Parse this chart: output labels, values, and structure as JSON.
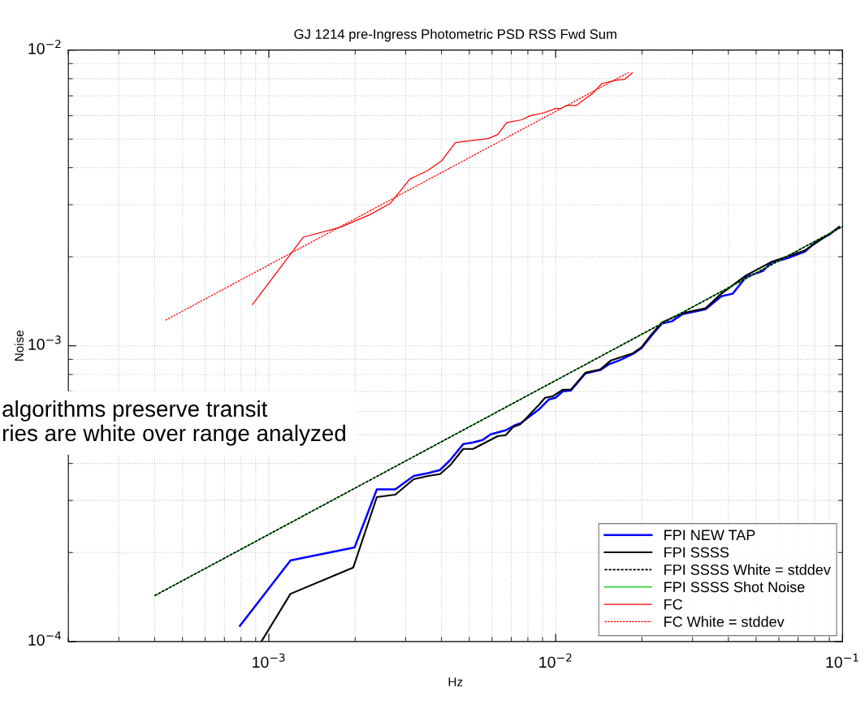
{
  "chart_data": {
    "type": "line",
    "title": "GJ 1214 pre-Ingress Photometric PSD RSS Fwd Sum",
    "xlabel": "Hz",
    "ylabel": "Noise",
    "log": "xy",
    "grid": true,
    "legend": "bottom right",
    "xlim": [
      0.0002,
      0.1
    ],
    "ylim": [
      0.0001,
      0.01
    ],
    "xticks": [
      {
        "value": 0.001,
        "label": "10$^{−3}$"
      },
      {
        "value": 0.01,
        "label": "10$^{−2}$"
      },
      {
        "value": 0.1,
        "label": "10$^{−1}$"
      }
    ],
    "yticks": [
      {
        "value": 0.0001,
        "label": "10$^{−4}$"
      },
      {
        "value": 0.001,
        "label": "10$^{−3}$"
      },
      {
        "value": 0.01,
        "label": "10$^{−2}$"
      }
    ],
    "annotations": [
      "algorithms preserve transit\nries are white over range analyzed"
    ],
    "series": [
      {
        "name": "FPI NEW TAP",
        "color": "#0000ff",
        "line_style": "solid",
        "x": [
          0.000793,
          0.00119,
          0.00199,
          0.00238,
          0.00276,
          0.0032,
          0.00359,
          0.00395,
          0.00428,
          0.00476,
          0.00515,
          0.00556,
          0.00593,
          0.0067,
          0.00719,
          0.00757,
          0.00877,
          0.00948,
          0.00998,
          0.0106,
          0.0113,
          0.0127,
          0.0143,
          0.0153,
          0.0167,
          0.0186,
          0.0199,
          0.0217,
          0.0235,
          0.0254,
          0.0277,
          0.0333,
          0.0378,
          0.0414,
          0.0461,
          0.0528,
          0.0564,
          0.0644,
          0.0738,
          0.0813,
          0.0902,
          0.0973
        ],
        "values": [
          0.000113,
          0.000188,
          0.000208,
          0.000327,
          0.000327,
          0.000363,
          0.000371,
          0.00038,
          0.00041,
          0.000465,
          0.000471,
          0.00048,
          0.000502,
          0.000518,
          0.000538,
          0.000548,
          0.000611,
          0.000659,
          0.000667,
          0.000702,
          0.000706,
          0.000807,
          0.000828,
          0.000865,
          0.000893,
          0.000939,
          0.000982,
          0.00109,
          0.00119,
          0.00121,
          0.00128,
          0.00133,
          0.00147,
          0.0015,
          0.00171,
          0.00179,
          0.00191,
          0.00198,
          0.00208,
          0.00226,
          0.00238,
          0.00252
        ]
      },
      {
        "name": "FPI SSSS",
        "color": "#000000",
        "line_style": "solid",
        "x": [
          0.000942,
          0.00119,
          0.00197,
          0.00238,
          0.00276,
          0.0032,
          0.00359,
          0.00395,
          0.00428,
          0.00476,
          0.00515,
          0.00628,
          0.0067,
          0.0071,
          0.00752,
          0.00867,
          0.00918,
          0.00979,
          0.0106,
          0.0113,
          0.0127,
          0.0143,
          0.0156,
          0.0186,
          0.0199,
          0.0217,
          0.0235,
          0.0277,
          0.0333,
          0.0378,
          0.0461,
          0.0564,
          0.0738,
          0.0902,
          0.0973
        ],
        "values": [
          0.0001,
          0.000145,
          0.000178,
          0.000308,
          0.000314,
          0.000354,
          0.000363,
          0.000368,
          0.000394,
          0.000448,
          0.000448,
          0.000495,
          0.000499,
          0.000531,
          0.000542,
          0.000626,
          0.000667,
          0.000676,
          0.000711,
          0.000711,
          0.000811,
          0.000832,
          0.000893,
          0.000944,
          0.000988,
          0.0011,
          0.0012,
          0.00129,
          0.00134,
          0.0015,
          0.00173,
          0.00192,
          0.0021,
          0.00239,
          0.00252
        ]
      },
      {
        "name": "FPI SSSS White = stddev",
        "color": "#000000",
        "line_style": "dashed",
        "x": [
          0.0004,
          0.1
        ],
        "values": [
          0.000143,
          0.00253
        ]
      },
      {
        "name": "FPI SSSS Shot Noise",
        "color": "#00cc00",
        "line_style": "solid",
        "x": [
          0.0004,
          0.1
        ],
        "values": [
          0.000143,
          0.00253
        ]
      },
      {
        "name": "FC",
        "color": "#ff0000",
        "line_style": "solid",
        "x": [
          0.000877,
          0.00132,
          0.00178,
          0.00224,
          0.00265,
          0.0031,
          0.00356,
          0.00401,
          0.00447,
          0.00512,
          0.00582,
          0.00628,
          0.00675,
          0.00762,
          0.00813,
          0.00912,
          0.00998,
          0.0104,
          0.0109,
          0.0118,
          0.0134,
          0.0145,
          0.0163,
          0.0174,
          0.0185
        ],
        "values": [
          0.00138,
          0.00233,
          0.00252,
          0.00277,
          0.00303,
          0.00366,
          0.0039,
          0.00423,
          0.00486,
          0.00495,
          0.00502,
          0.00518,
          0.00569,
          0.00581,
          0.00599,
          0.00614,
          0.00634,
          0.00634,
          0.0065,
          0.0065,
          0.00711,
          0.00771,
          0.00791,
          0.00796,
          0.00838
        ]
      },
      {
        "name": "FC White = stddev",
        "color": "#ff0000",
        "line_style": "dashed",
        "x": [
          0.000436,
          0.01795
        ],
        "values": [
          0.00122,
          0.0084
        ]
      }
    ]
  }
}
